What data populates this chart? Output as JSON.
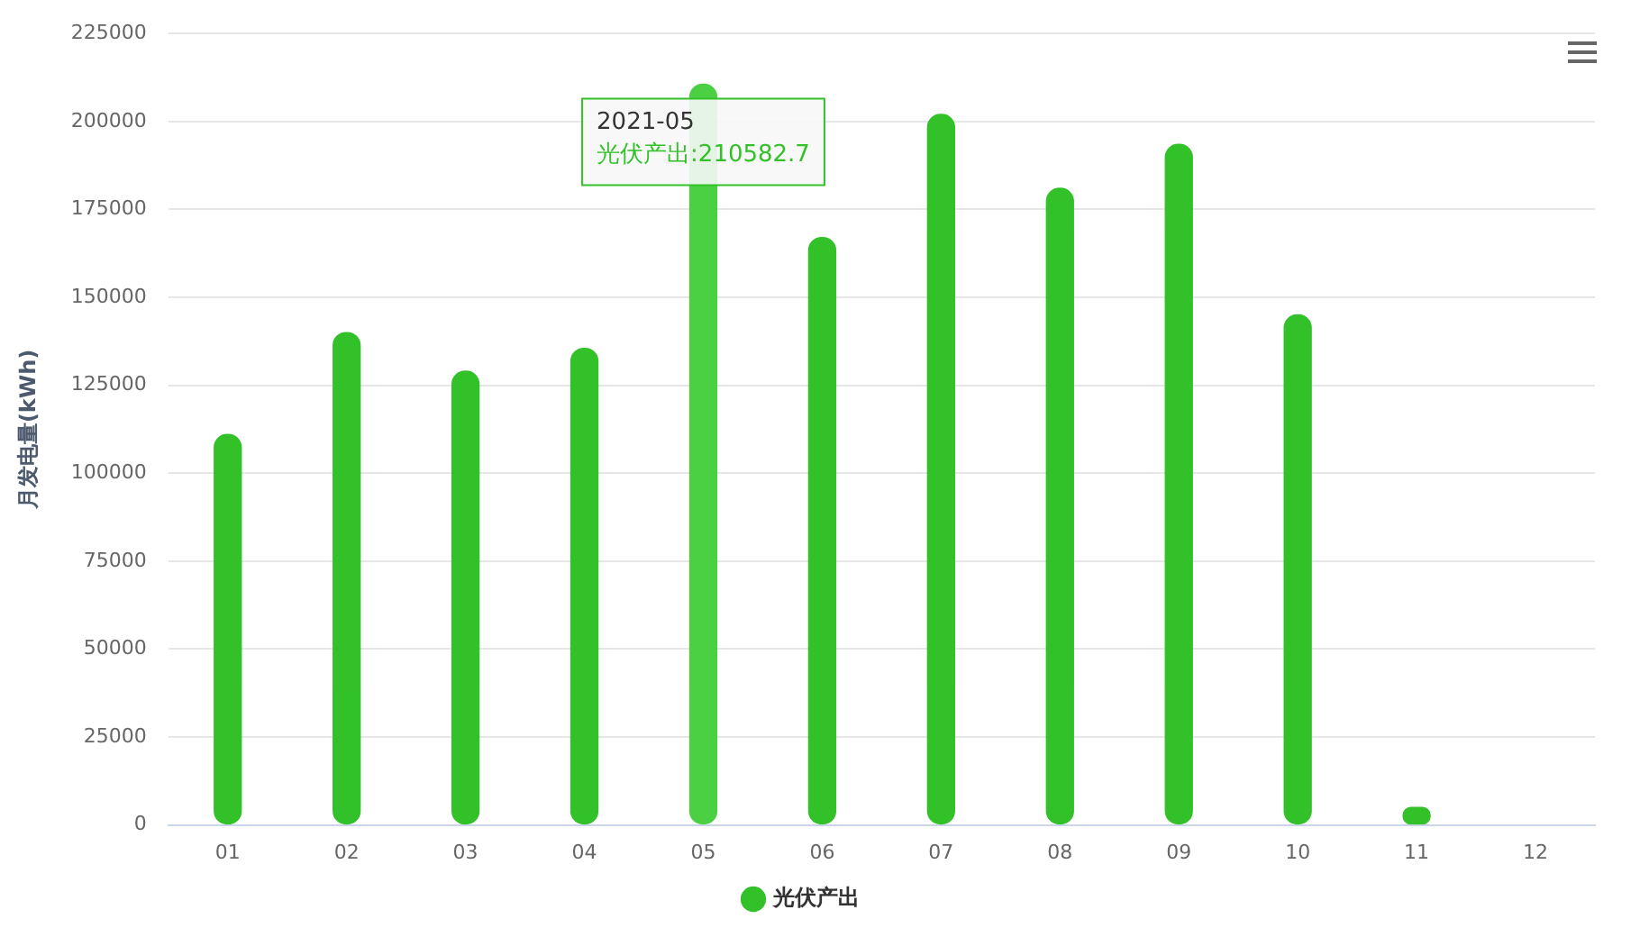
{
  "chart_data": {
    "type": "bar",
    "ylabel": "月发电量(kWh)",
    "categories": [
      "01",
      "02",
      "03",
      "04",
      "05",
      "06",
      "07",
      "08",
      "09",
      "10",
      "11",
      "12"
    ],
    "series": [
      {
        "name": "光伏产出",
        "color": "#33c12a",
        "colors": [
          "#33c12a",
          "#33c12a",
          "#33c12a",
          "#33c12a",
          "#4cd043",
          "#33c12a",
          "#33c12a",
          "#33c12a",
          "#33c12a",
          "#33c12a",
          "#33c12a",
          "#33c12a"
        ],
        "values": [
          111000,
          140000,
          129000,
          135500,
          210582.7,
          167000,
          202000,
          181000,
          193500,
          145000,
          5000,
          null
        ]
      }
    ],
    "ylim": [
      0,
      225000
    ],
    "yticks": [
      0,
      25000,
      50000,
      75000,
      100000,
      125000,
      150000,
      175000,
      200000,
      225000
    ],
    "grid": "y",
    "legend": "bottom",
    "annotations": [
      {
        "text": "2021-05\n光伏产出:210582.7",
        "x": "05",
        "y": 210582.7
      }
    ]
  }
}
